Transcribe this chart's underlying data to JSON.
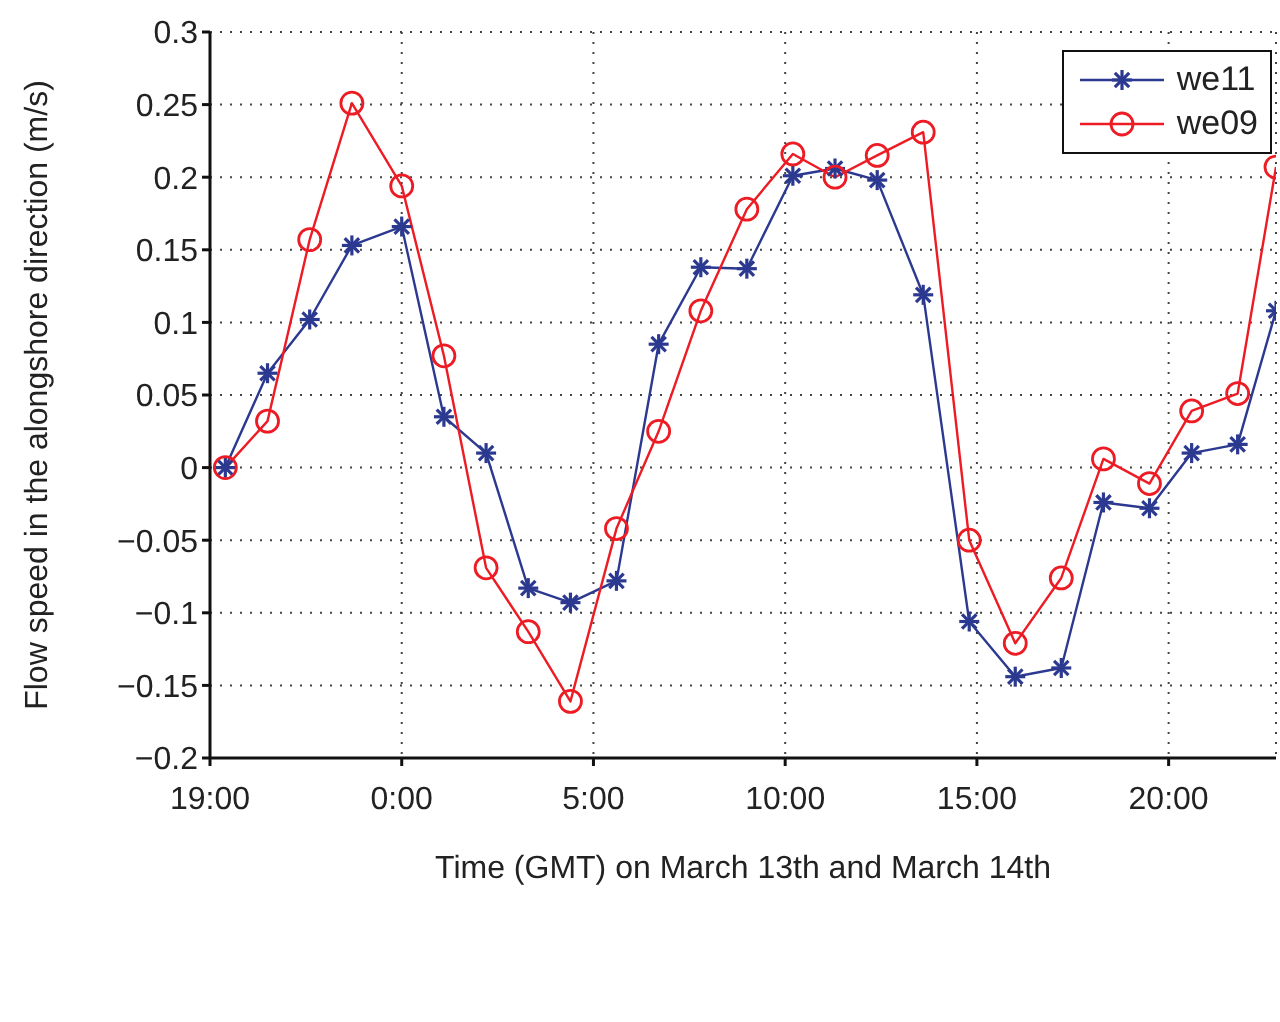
{
  "chart_data": {
    "type": "line",
    "xlabel": "Time (GMT) on March 13th and March 14th",
    "ylabel": "Flow speed in the alongshore direction (m/s)",
    "x": [
      "--03-13T19:24",
      "--03-13T20:30",
      "--03-13T21:36",
      "--03-13T22:42",
      "--03-14T00:00",
      "--03-14T01:06",
      "--03-14T02:12",
      "--03-14T03:18",
      "--03-14T04:24",
      "--03-14T05:36",
      "--03-14T06:42",
      "--03-14T07:48",
      "--03-14T09:00",
      "--03-14T10:12",
      "--03-14T11:18",
      "--03-14T12:24",
      "--03-14T13:36",
      "--03-14T14:48",
      "--03-14T16:00",
      "--03-14T17:12",
      "--03-14T18:18",
      "--03-14T19:30",
      "--03-14T20:36",
      "--03-14T21:48",
      "--03-14T22:48"
    ],
    "series": [
      {
        "name": "we11",
        "color": "#2b3990",
        "marker": "cross",
        "values": [
          0,
          0.065,
          0.102,
          0.153,
          0.166,
          0.035,
          0.01,
          -0.083,
          -0.093,
          -0.078,
          0.085,
          0.138,
          0.137,
          0.201,
          0.206,
          0.198,
          0.119,
          -0.106,
          -0.144,
          -0.138,
          -0.024,
          -0.028,
          0.01,
          0.016,
          0.108
        ]
      },
      {
        "name": "we09",
        "color": "#ed1c24",
        "marker": "circle",
        "values": [
          0,
          0.032,
          0.157,
          0.251,
          0.194,
          0.077,
          -0.069,
          -0.113,
          -0.161,
          -0.042,
          0.025,
          0.108,
          0.178,
          0.216,
          0.2,
          0.215,
          0.231,
          -0.05,
          -0.121,
          -0.076,
          0.006,
          -0.011,
          0.039,
          0.051,
          0.207
        ]
      }
    ],
    "xlim": [
      "--03-13T19:00",
      "--03-14T22:48"
    ],
    "xticks": [
      {
        "value": "--03-13T19:00",
        "label": "19:00"
      },
      {
        "value": "--03-14T00:00",
        "label": "0:00"
      },
      {
        "value": "--03-14T05:00",
        "label": "5:00"
      },
      {
        "value": "--03-14T10:00",
        "label": "10:00"
      },
      {
        "value": "--03-14T15:00",
        "label": "15:00"
      },
      {
        "value": "--03-14T20:00",
        "label": "20:00"
      }
    ],
    "ylim": [
      -0.2,
      0.3
    ],
    "yticks": [
      -0.2,
      -0.15,
      -0.1,
      -0.05,
      0,
      0.05,
      0.1,
      0.15,
      0.2,
      0.25,
      0.3
    ],
    "grid": true,
    "legend": "top right",
    "line_style": "solid"
  }
}
